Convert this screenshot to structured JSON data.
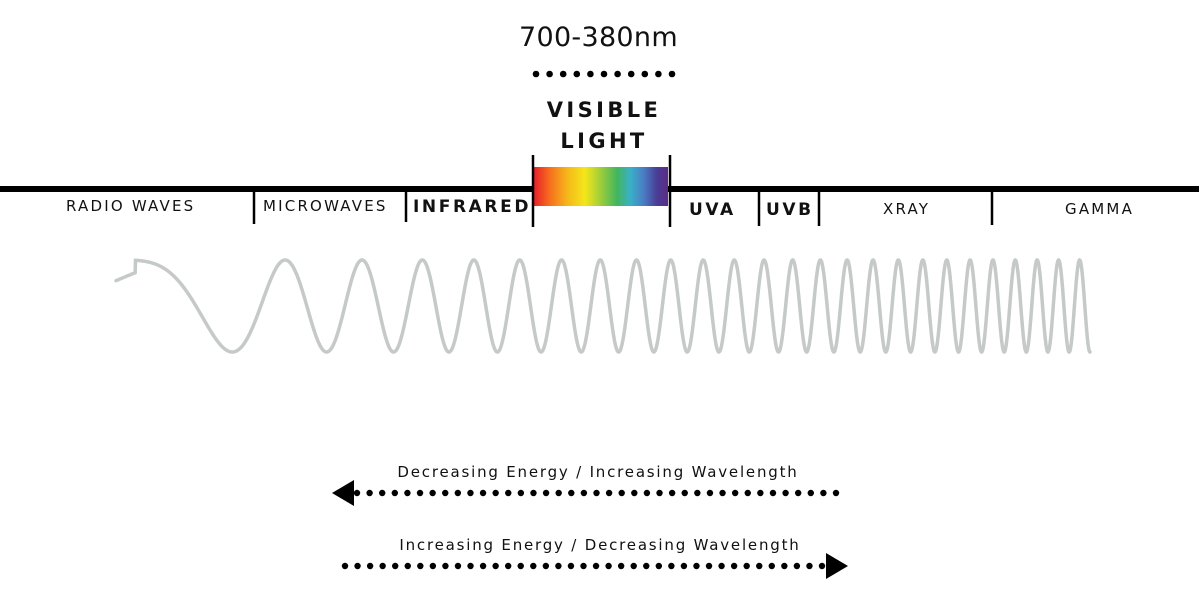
{
  "visible_range": "700-380nm",
  "visible_light": {
    "line1": "VISIBLE",
    "line2": "LIGHT"
  },
  "bands": [
    {
      "label": "RADIO WAVES"
    },
    {
      "label": "MICROWAVES"
    },
    {
      "label": "INFRARED"
    },
    {
      "label": "UVA"
    },
    {
      "label": "UVB"
    },
    {
      "label": "XRAY"
    },
    {
      "label": "GAMMA"
    }
  ],
  "spectrum_colors": [
    "#e8202a",
    "#f7701d",
    "#f5b81a",
    "#f4e61a",
    "#9ccd3b",
    "#42b55e",
    "#3ab0c8",
    "#4a7cc4",
    "#4a3b94",
    "#5d2c86"
  ],
  "wave_color": "#c5c9c8",
  "arrows": {
    "decreasing": "Decreasing Energy / Increasing Wavelength",
    "increasing": "Increasing Energy / Decreasing Wavelength"
  }
}
